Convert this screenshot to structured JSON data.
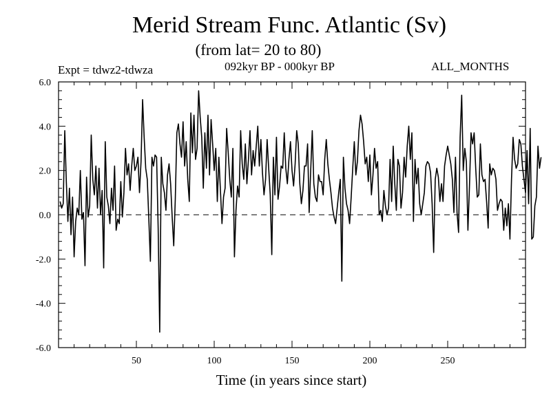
{
  "chart_data": {
    "type": "line",
    "title": "Merid Stream Func. Atlantic (Sv)",
    "subtitle": "(from lat= 20 to 80)",
    "expt_label": "Expt = tdwz2-tdwza",
    "period_label": "092kyr BP - 000kyr BP",
    "months_label": "ALL_MONTHS",
    "xlabel": "Time (in years since start)",
    "ylabel": "",
    "xlim": [
      0,
      300
    ],
    "ylim": [
      -6,
      6
    ],
    "x_ticks": [
      50,
      100,
      150,
      200,
      250
    ],
    "x_tick_labels": [
      "50",
      "100",
      "150",
      "200",
      "250"
    ],
    "y_ticks": [
      -6,
      -4,
      -2,
      0,
      2,
      4,
      6
    ],
    "y_tick_labels": [
      "-6.0",
      "-4.0",
      "-2.0",
      "0.0",
      "2.0",
      "4.0",
      "6.0"
    ],
    "zero_line": "dashed",
    "grid": false,
    "series": [
      {
        "name": "Merid Stream Func. Atlantic",
        "x_start": 1,
        "x_step": 1,
        "values": [
          0.6,
          0.3,
          0.5,
          3.8,
          1.5,
          -0.3,
          1.2,
          -0.9,
          0.8,
          -1.9,
          -0.3,
          0.3,
          0.0,
          2.0,
          -0.2,
          0.1,
          -2.3,
          1.7,
          -0.1,
          0.4,
          3.6,
          1.6,
          0.9,
          2.2,
          0.3,
          2.1,
          0.0,
          1.1,
          -2.4,
          3.3,
          0.8,
          0.4,
          -0.4,
          1.2,
          0.2,
          2.2,
          -0.7,
          -0.2,
          -0.4,
          1.5,
          -0.1,
          1.0,
          3.0,
          1.8,
          2.3,
          1.1,
          2.2,
          3.0,
          2.0,
          2.2,
          2.6,
          1.0,
          2.4,
          5.2,
          3.5,
          2.1,
          1.6,
          -0.2,
          -2.1,
          2.6,
          2.2,
          2.7,
          2.6,
          -0.6,
          -5.3,
          2.6,
          1.4,
          1.0,
          0.2,
          1.8,
          2.3,
          1.4,
          -0.1,
          -1.4,
          0.7,
          3.7,
          4.1,
          3.2,
          2.6,
          4.2,
          2.2,
          3.3,
          1.6,
          0.6,
          4.6,
          2.8,
          4.5,
          2.5,
          3.0,
          5.6,
          4.4,
          3.5,
          1.2,
          3.7,
          2.1,
          4.5,
          1.8,
          4.3,
          3.2,
          2.0,
          3.0,
          0.6,
          2.6,
          1.1,
          -0.4,
          0.8,
          1.2,
          3.9,
          2.8,
          1.6,
          0.8,
          3.0,
          -1.9,
          0.2,
          1.3,
          0.8,
          3.8,
          2.3,
          1.6,
          3.2,
          1.4,
          2.5,
          3.8,
          1.8,
          2.9,
          2.2,
          3.1,
          4.0,
          2.2,
          3.4,
          1.9,
          0.9,
          1.6,
          3.4,
          2.1,
          0.9,
          -1.8,
          2.6,
          0.9,
          3.5,
          0.7,
          1.3,
          2.2,
          2.1,
          3.7,
          2.1,
          1.4,
          2.5,
          3.3,
          2.0,
          1.3,
          2.3,
          3.8,
          3.2,
          1.4,
          0.5,
          1.1,
          2.2,
          2.2,
          3.2,
          0.1,
          2.0,
          3.8,
          1.4,
          0.8,
          0.6,
          1.8,
          1.5,
          1.5,
          0.9,
          2.5,
          3.4,
          2.3,
          1.6,
          1.0,
          0.3,
          -0.1,
          -0.4,
          0.3,
          1.0,
          1.6,
          -3.0,
          2.6,
          1.2,
          0.5,
          0.2,
          -0.4,
          0.8,
          2.1,
          3.3,
          1.8,
          2.4,
          3.8,
          4.5,
          4.1,
          3.3,
          2.3,
          2.6,
          1.5,
          2.7,
          0.9,
          1.8,
          3.0,
          2.1,
          2.4,
          0.0,
          0.2,
          -0.3,
          1.1,
          0.4,
          0.0,
          0.3,
          2.5,
          0.6,
          3.1,
          1.4,
          0.2,
          2.5,
          2.2,
          0.3,
          1.0,
          2.6,
          1.7,
          3.1,
          4.0,
          2.5,
          3.7,
          -0.3,
          2.5,
          1.4,
          2.1,
          0.5,
          0.0,
          0.5,
          1.0,
          2.2,
          2.4,
          2.3,
          1.9,
          0.5,
          -1.7,
          1.6,
          2.1,
          1.7,
          0.6,
          1.4,
          0.6,
          2.2,
          2.7,
          3.1,
          2.7,
          2.3,
          1.6,
          0.1,
          2.6,
          0.1,
          -0.8,
          3.5,
          5.4,
          2.0,
          3.0,
          2.4,
          -0.7,
          1.3,
          3.7,
          3.2,
          3.7,
          2.1,
          0.8,
          0.9,
          3.2,
          1.8,
          1.5,
          1.6,
          0.6,
          -0.6,
          2.3,
          1.8,
          2.1,
          2.0,
          1.6,
          0.2,
          0.5,
          0.7,
          0.6,
          -0.7,
          0.3,
          -0.5,
          0.5,
          -1.1,
          1.6,
          3.5,
          2.5,
          2.1,
          2.3,
          3.4,
          3.2,
          2.2,
          1.6,
          1.0,
          2.9,
          0.5,
          3.9,
          -1.1,
          -1.0,
          0.4,
          0.8,
          3.1,
          2.1,
          2.6
        ]
      }
    ]
  }
}
